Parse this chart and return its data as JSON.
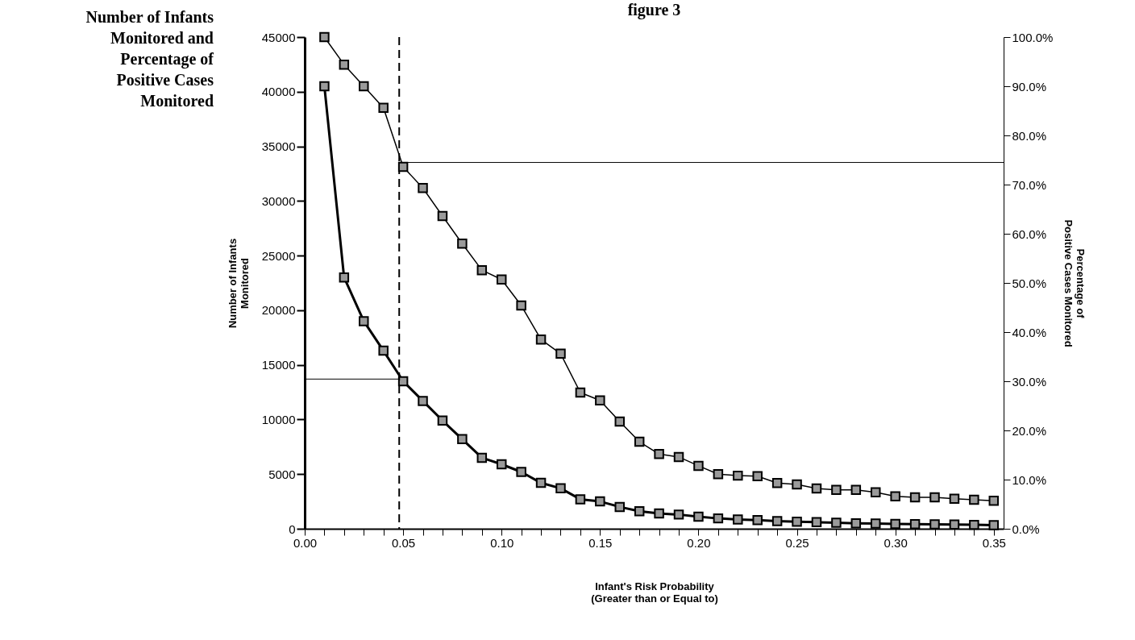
{
  "chart_data": {
    "type": "line",
    "title": "figure 3",
    "xlabel": "Infant's Risk Probability\n(Greater than or Equal to)",
    "ylabel": "Number of Infants\nMonitored",
    "y2label": "Percentage of\nPositive Cases Monitored",
    "annotations": [
      "Number of Infants Monitored and Percentage of Positive Cases Monitored"
    ],
    "x": [
      0.01,
      0.02,
      0.03,
      0.04,
      0.05,
      0.06,
      0.07,
      0.08,
      0.09,
      0.1,
      0.11,
      0.12,
      0.13,
      0.14,
      0.15,
      0.16,
      0.17,
      0.18,
      0.19,
      0.2,
      0.21,
      0.22,
      0.23,
      0.24,
      0.25,
      0.26,
      0.27,
      0.28,
      0.29,
      0.3,
      0.31,
      0.32,
      0.33,
      0.34,
      0.35
    ],
    "series": [
      {
        "color": "#000000",
        "values": [
          40500,
          23000,
          19000,
          16300,
          13500,
          11700,
          9900,
          8200,
          6500,
          5900,
          5200,
          4200,
          3700,
          2700,
          2500,
          2000,
          1600,
          1400,
          1300,
          1100,
          950,
          850,
          800,
          700,
          650,
          600,
          550,
          500,
          480,
          450,
          420,
          400,
          380,
          360,
          340
        ]
      },
      {
        "color": "#000000",
        "axis": "y2",
        "values": [
          100,
          94.4,
          90.0,
          85.6,
          73.6,
          69.3,
          63.6,
          58.0,
          52.6,
          50.7,
          45.4,
          38.5,
          35.6,
          27.7,
          26.1,
          21.8,
          17.7,
          15.2,
          14.6,
          12.8,
          11.1,
          10.8,
          10.7,
          9.3,
          9.0,
          8.2,
          7.9,
          7.9,
          7.4,
          6.6,
          6.4,
          6.4,
          6.1,
          5.9,
          5.7
        ]
      }
    ],
    "xlim": [
      0,
      0.355
    ],
    "xticks": [
      {
        "value": 0,
        "label": "0.00"
      },
      {
        "value": 0.01,
        "label": null
      },
      {
        "value": 0.02,
        "label": null
      },
      {
        "value": 0.03,
        "label": null
      },
      {
        "value": 0.04,
        "label": null
      },
      {
        "value": 0.05,
        "label": "0.05"
      },
      {
        "value": 0.06,
        "label": null
      },
      {
        "value": 0.07,
        "label": null
      },
      {
        "value": 0.08,
        "label": null
      },
      {
        "value": 0.09,
        "label": null
      },
      {
        "value": 0.1,
        "label": "0.10"
      },
      {
        "value": 0.11,
        "label": null
      },
      {
        "value": 0.12,
        "label": null
      },
      {
        "value": 0.13,
        "label": null
      },
      {
        "value": 0.14,
        "label": null
      },
      {
        "value": 0.15,
        "label": "0.15"
      },
      {
        "value": 0.16,
        "label": null
      },
      {
        "value": 0.17,
        "label": null
      },
      {
        "value": 0.18,
        "label": null
      },
      {
        "value": 0.19,
        "label": null
      },
      {
        "value": 0.2,
        "label": "0.20"
      },
      {
        "value": 0.21,
        "label": null
      },
      {
        "value": 0.22,
        "label": null
      },
      {
        "value": 0.23,
        "label": null
      },
      {
        "value": 0.24,
        "label": null
      },
      {
        "value": 0.25,
        "label": "0.25"
      },
      {
        "value": 0.26,
        "label": null
      },
      {
        "value": 0.27,
        "label": null
      },
      {
        "value": 0.28,
        "label": null
      },
      {
        "value": 0.29,
        "label": null
      },
      {
        "value": 0.3,
        "label": "0.30"
      },
      {
        "value": 0.31,
        "label": null
      },
      {
        "value": 0.32,
        "label": null
      },
      {
        "value": 0.33,
        "label": null
      },
      {
        "value": 0.34,
        "label": null
      },
      {
        "value": 0.35,
        "label": "0.35"
      }
    ],
    "ylim": [
      0,
      45000
    ],
    "yticks": [
      0,
      5000,
      10000,
      15000,
      20000,
      25000,
      30000,
      35000,
      40000,
      45000
    ],
    "y2lim": [
      0,
      100
    ],
    "y2ticks": [
      {
        "value": 0,
        "label": "0.0%"
      },
      {
        "value": 10,
        "label": "10.0%"
      },
      {
        "value": 20,
        "label": "20.0%"
      },
      {
        "value": 30,
        "label": "30.0%"
      },
      {
        "value": 40,
        "label": "40.0%"
      },
      {
        "value": 50,
        "label": "50.0%"
      },
      {
        "value": 60,
        "label": "60.0%"
      },
      {
        "value": 70,
        "label": "70.0%"
      },
      {
        "value": 80,
        "label": "80.0%"
      },
      {
        "value": 90,
        "label": "90.0%"
      },
      {
        "value": 100,
        "label": "100.0%"
      }
    ],
    "ref_lines": [
      {
        "axis": "x",
        "value": 0.048,
        "line_style": "dashed"
      },
      {
        "axis": "y",
        "value": 13700
      },
      {
        "axis": "y2",
        "value": 74.5
      }
    ],
    "marker": "square",
    "line_style": "solid"
  }
}
